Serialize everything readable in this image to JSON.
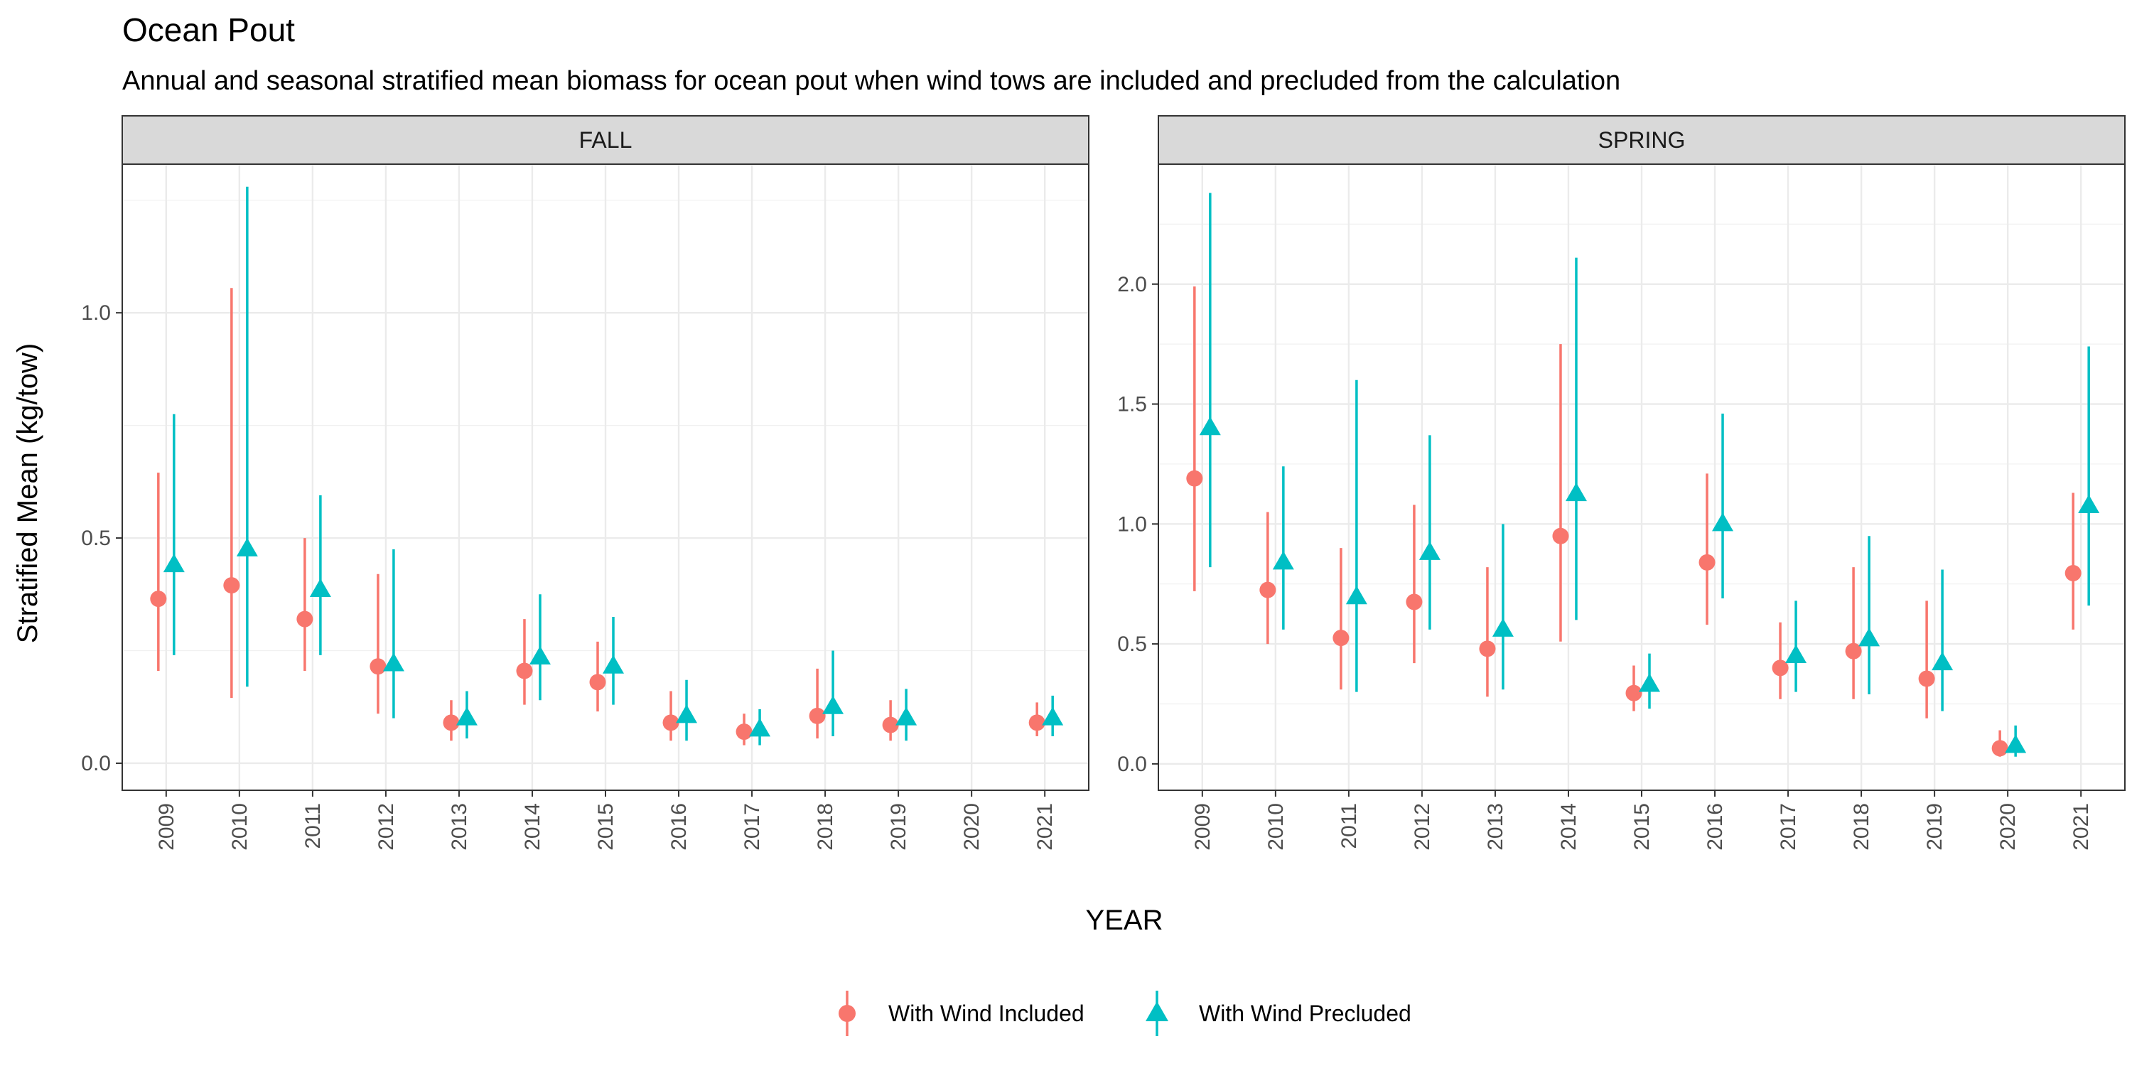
{
  "chart_data": {
    "type": "scatter",
    "title": "Ocean Pout",
    "subtitle": "Annual and seasonal stratified mean biomass for ocean pout when wind tows are included and precluded from the calculation",
    "xlabel": "YEAR",
    "ylabel": "Stratified Mean (kg/tow)",
    "categories": [
      "2009",
      "2010",
      "2011",
      "2012",
      "2013",
      "2014",
      "2015",
      "2016",
      "2017",
      "2018",
      "2019",
      "2020",
      "2021"
    ],
    "legend_position": "bottom",
    "grid": true,
    "colors": {
      "included": "#F8766D",
      "precluded": "#00BFC4"
    },
    "legend": [
      {
        "key": "included",
        "label": "With Wind Included",
        "shape": "circle"
      },
      {
        "key": "precluded",
        "label": "With Wind Precluded",
        "shape": "triangle"
      }
    ],
    "panels": [
      {
        "label": "FALL",
        "ylim": [
          -0.06,
          1.33
        ],
        "yticks": [
          0.0,
          0.5,
          1.0
        ],
        "ytick_labels": [
          "0.0",
          "0.5",
          "1.0"
        ],
        "series": [
          {
            "key": "included",
            "mean": [
              0.365,
              0.395,
              0.32,
              0.215,
              0.09,
              0.205,
              0.18,
              0.09,
              0.07,
              0.105,
              0.085,
              null,
              0.09
            ],
            "lower": [
              0.205,
              0.145,
              0.205,
              0.11,
              0.05,
              0.13,
              0.115,
              0.05,
              0.04,
              0.055,
              0.05,
              null,
              0.06
            ],
            "upper": [
              0.645,
              1.055,
              0.5,
              0.42,
              0.14,
              0.32,
              0.27,
              0.16,
              0.11,
              0.21,
              0.14,
              null,
              0.135
            ]
          },
          {
            "key": "precluded",
            "mean": [
              0.44,
              0.475,
              0.385,
              0.22,
              0.1,
              0.235,
              0.215,
              0.105,
              0.075,
              0.125,
              0.1,
              null,
              0.1
            ],
            "lower": [
              0.24,
              0.17,
              0.24,
              0.1,
              0.055,
              0.14,
              0.13,
              0.05,
              0.04,
              0.06,
              0.05,
              null,
              0.06
            ],
            "upper": [
              0.775,
              1.28,
              0.595,
              0.475,
              0.16,
              0.375,
              0.325,
              0.185,
              0.12,
              0.25,
              0.165,
              null,
              0.15
            ]
          }
        ]
      },
      {
        "label": "SPRING",
        "ylim": [
          -0.11,
          2.5
        ],
        "yticks": [
          0.0,
          0.5,
          1.0,
          1.5,
          2.0
        ],
        "ytick_labels": [
          "0.0",
          "0.5",
          "1.0",
          "1.5",
          "2.0"
        ],
        "series": [
          {
            "key": "included",
            "mean": [
              1.19,
              0.725,
              0.525,
              0.675,
              0.48,
              0.95,
              0.295,
              0.84,
              0.4,
              0.47,
              0.355,
              0.065,
              0.795
            ],
            "lower": [
              0.72,
              0.5,
              0.31,
              0.42,
              0.28,
              0.51,
              0.22,
              0.58,
              0.27,
              0.27,
              0.19,
              0.03,
              0.56
            ],
            "upper": [
              1.99,
              1.05,
              0.9,
              1.08,
              0.82,
              1.75,
              0.41,
              1.21,
              0.59,
              0.82,
              0.68,
              0.14,
              1.13
            ]
          },
          {
            "key": "precluded",
            "mean": [
              1.4,
              0.84,
              0.695,
              0.88,
              0.56,
              1.125,
              0.33,
              1.0,
              0.45,
              0.52,
              0.42,
              0.075,
              1.075
            ],
            "lower": [
              0.82,
              0.56,
              0.3,
              0.56,
              0.31,
              0.6,
              0.23,
              0.69,
              0.3,
              0.29,
              0.22,
              0.03,
              0.66
            ],
            "upper": [
              2.38,
              1.24,
              1.6,
              1.37,
              1.0,
              2.11,
              0.46,
              1.46,
              0.68,
              0.95,
              0.81,
              0.16,
              1.74
            ]
          }
        ]
      }
    ]
  }
}
